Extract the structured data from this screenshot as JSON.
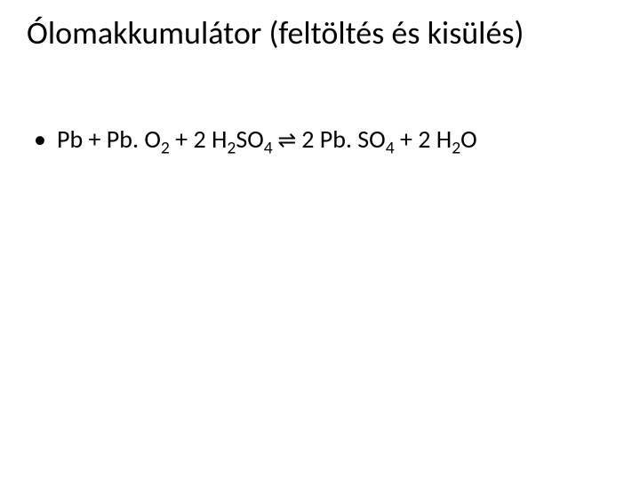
{
  "slide": {
    "title": "Ólomakkumulátor (feltöltés és kisülés)",
    "bullet_dot": "•",
    "equation": {
      "lhs_1": "Pb + Pb. O",
      "lhs_sub1": "2",
      "lhs_2": " + 2 H",
      "lhs_sub2": "2",
      "lhs_3": "SO",
      "lhs_sub3": "4",
      "arrow": " ⇌ ",
      "rhs_1": "2 Pb. SO",
      "rhs_sub1": "4",
      "rhs_2": " + 2 H",
      "rhs_sub2": "2",
      "rhs_3": "O"
    }
  },
  "style": {
    "background_color": "#ffffff",
    "text_color": "#000000",
    "title_fontsize": 36,
    "body_fontsize": 28,
    "font_family": "Calibri, Arial, sans-serif"
  }
}
